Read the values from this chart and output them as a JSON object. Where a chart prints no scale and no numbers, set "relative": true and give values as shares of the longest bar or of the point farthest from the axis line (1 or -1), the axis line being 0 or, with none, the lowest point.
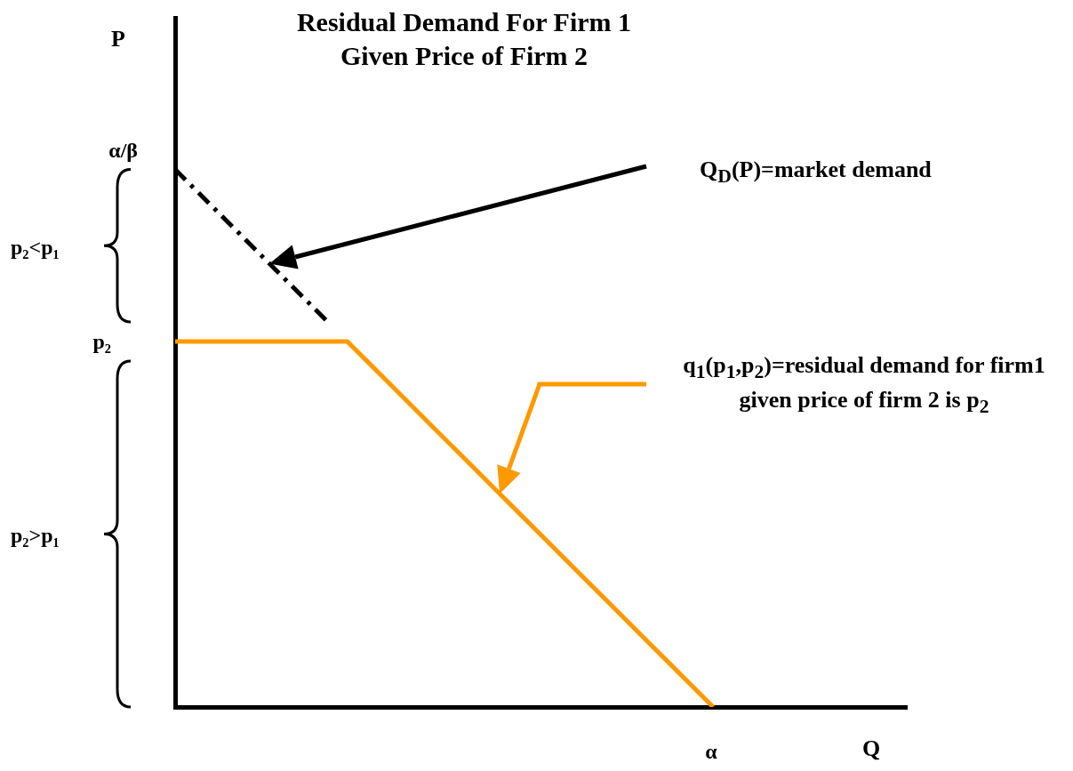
{
  "chart_data": {
    "type": "line",
    "title": "Residual Demand For Firm 1\nGiven Price of Firm 2",
    "xlabel": "Q",
    "categories": [
      null,
      null,
      null,
      null,
      null,
      null,
      null,
      null,
      null,
      null,
      null,
      null,
      null,
      null,
      null,
      null,
      null,
      null,
      null,
      null,
      null,
      null,
      null,
      null,
      null,
      null,
      null,
      null,
      null,
      null,
      null,
      null,
      null,
      null,
      null
    ],
    "relative": true,
    "grid": false,
    "legend": false,
    "series": [
      {
        "color": "#000000",
        "line_style": "dashed",
        "values": [
          1,
          0.96,
          0.92,
          0.88,
          0.84,
          0.8,
          0.76,
          0.72,
          null,
          null,
          null,
          null,
          null,
          null,
          null,
          null,
          null,
          null,
          null,
          null,
          null,
          null,
          null,
          null,
          null,
          null,
          null,
          null,
          null,
          null,
          null,
          null,
          null,
          null,
          null
        ]
      },
      {
        "color": "#ff9900",
        "line_style": "solid",
        "values": [
          0.68,
          0.68,
          0.68,
          0.68,
          0.68,
          0.68,
          0.68,
          0.68,
          0.68,
          0.64,
          0.6,
          0.56,
          0.52,
          0.48,
          0.44,
          0.4,
          0.36,
          0.32,
          0.28,
          0.24,
          0.2,
          0.16,
          0.12,
          0.08,
          0.04,
          0,
          null,
          null,
          null,
          null,
          null,
          null,
          null,
          null,
          null
        ]
      }
    ],
    "annotations": [
      "P",
      "α/β",
      "p₂",
      "p₂<p₁",
      "p₂>p₁",
      "α",
      "Q$_{D}$(P)=market demand",
      "q$_{1}$(p$_{1}$,p$_{2}$)=residual demand for firm1 given price of firm 2 is p$_{2}$"
    ]
  }
}
